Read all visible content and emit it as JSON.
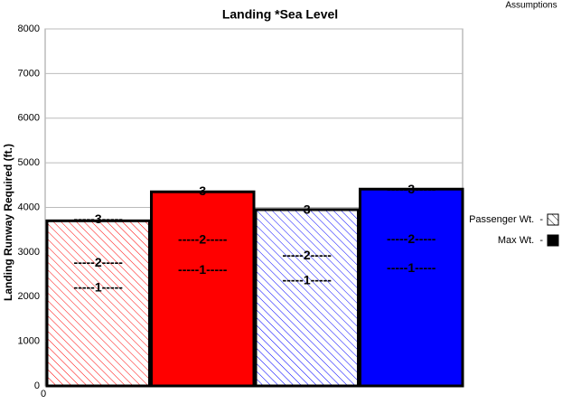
{
  "chart_data": {
    "type": "bar",
    "title": "Landing *Sea Level",
    "corner_note": "Assumptions",
    "y_label": "Landing Runway Required (ft.)",
    "ylim": [
      0,
      8000
    ],
    "yticks": [
      0,
      1000,
      2000,
      3000,
      4000,
      5000,
      6000,
      7000,
      8000
    ],
    "grid": true,
    "xticks": [
      0
    ],
    "bars": [
      {
        "value": 3700,
        "color": "#ff0000",
        "style": "hatched",
        "markers": [
          {
            "label": "-----3-----",
            "value": 3720
          },
          {
            "label": "-----2-----",
            "value": 2750
          },
          {
            "label": "-----1-----",
            "value": 2190
          }
        ]
      },
      {
        "value": 4350,
        "color": "#ff0000",
        "style": "solid",
        "markers": [
          {
            "label": "-----3-----",
            "value": 4350
          },
          {
            "label": "-----2-----",
            "value": 3260
          },
          {
            "label": "-----1-----",
            "value": 2590
          }
        ]
      },
      {
        "value": 3950,
        "color": "#0000ff",
        "style": "hatched",
        "markers": [
          {
            "label": "-----3-----",
            "value": 3930
          },
          {
            "label": "-----2-----",
            "value": 2910
          },
          {
            "label": "-----1-----",
            "value": 2350
          }
        ]
      },
      {
        "value": 4410,
        "color": "#0000ff",
        "style": "solid",
        "markers": [
          {
            "label": "-----3-----",
            "value": 4390
          },
          {
            "label": "-----2-----",
            "value": 3280
          },
          {
            "label": "-----1-----",
            "value": 2630
          }
        ]
      }
    ],
    "legend": [
      {
        "label": "Passenger Wt.  -",
        "style": "hatched",
        "color": "#000000"
      },
      {
        "label": "Max Wt.  -",
        "style": "solid",
        "color": "#000000"
      }
    ]
  }
}
